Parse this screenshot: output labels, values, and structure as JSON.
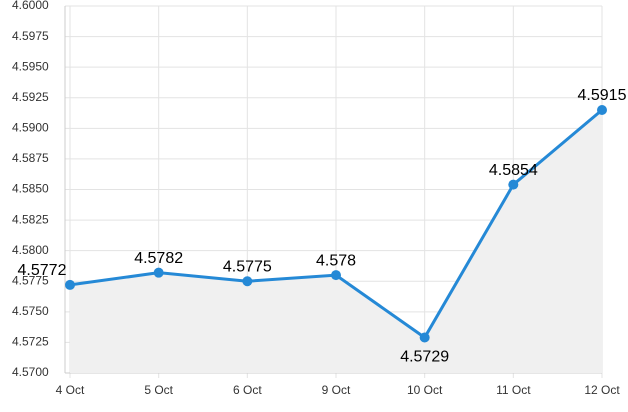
{
  "chart_data": {
    "type": "line",
    "categories": [
      "4 Oct",
      "5 Oct",
      "6 Oct",
      "9 Oct",
      "10 Oct",
      "11 Oct",
      "12 Oct"
    ],
    "values": [
      4.5772,
      4.5782,
      4.5775,
      4.578,
      4.5729,
      4.5854,
      4.5915
    ],
    "color": "#2589d6",
    "area_color": "#f0f0f0",
    "ylim": [
      4.57,
      4.6
    ],
    "yticks": [
      {
        "value": 4.57,
        "label": "4.5700"
      },
      4.5725,
      {
        "value": 4.575,
        "label": "4.5750"
      },
      4.5775,
      {
        "value": 4.58,
        "label": "4.5800"
      },
      4.5825,
      {
        "value": 4.585,
        "label": "4.5850"
      },
      4.5875,
      {
        "value": 4.59,
        "label": "4.5900"
      },
      4.5925,
      {
        "value": 4.595,
        "label": "4.5950"
      },
      4.5975,
      {
        "value": 4.6,
        "label": "4.6000"
      }
    ],
    "grid": true
  }
}
